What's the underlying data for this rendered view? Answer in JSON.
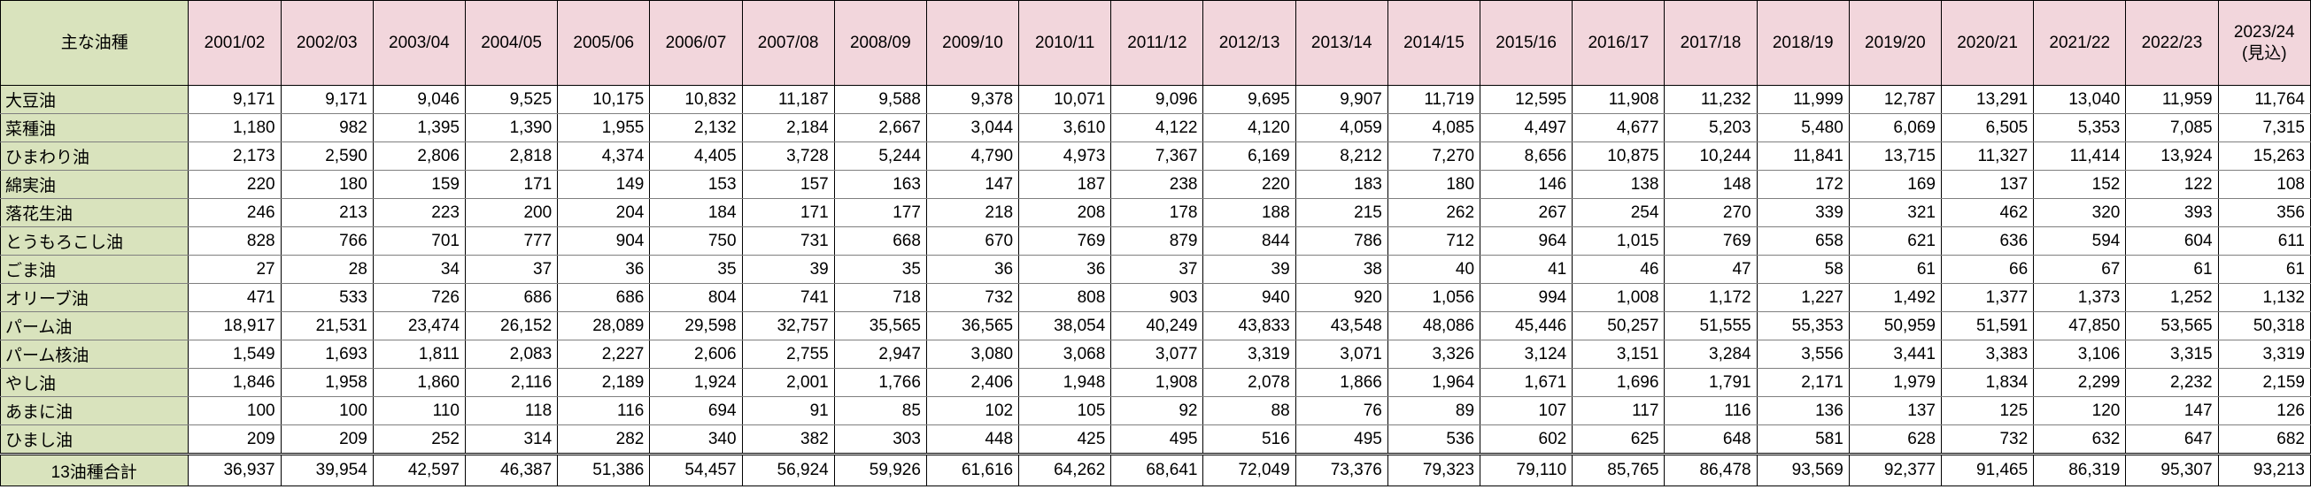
{
  "header": {
    "corner_label": "主な油種",
    "years": [
      "2001/02",
      "2002/03",
      "2003/04",
      "2004/05",
      "2005/06",
      "2006/07",
      "2007/08",
      "2008/09",
      "2009/10",
      "2010/11",
      "2011/12",
      "2012/13",
      "2013/14",
      "2014/15",
      "2015/16",
      "2016/17",
      "2017/18",
      "2018/19",
      "2019/20",
      "2020/21",
      "2021/22",
      "2022/23"
    ],
    "last_year": "2023/24",
    "last_year_note": "(見込)"
  },
  "rows": [
    {
      "name": "大豆油",
      "values": [
        "9,171",
        "9,171",
        "9,046",
        "9,525",
        "10,175",
        "10,832",
        "11,187",
        "9,588",
        "9,378",
        "10,071",
        "9,096",
        "9,695",
        "9,907",
        "11,719",
        "12,595",
        "11,908",
        "11,232",
        "11,999",
        "12,787",
        "13,291",
        "13,040",
        "11,959",
        "11,764"
      ]
    },
    {
      "name": "菜種油",
      "values": [
        "1,180",
        "982",
        "1,395",
        "1,390",
        "1,955",
        "2,132",
        "2,184",
        "2,667",
        "3,044",
        "3,610",
        "4,122",
        "4,120",
        "4,059",
        "4,085",
        "4,497",
        "4,677",
        "5,203",
        "5,480",
        "6,069",
        "6,505",
        "5,353",
        "7,085",
        "7,315"
      ]
    },
    {
      "name": "ひまわり油",
      "values": [
        "2,173",
        "2,590",
        "2,806",
        "2,818",
        "4,374",
        "4,405",
        "3,728",
        "5,244",
        "4,790",
        "4,973",
        "7,367",
        "6,169",
        "8,212",
        "7,270",
        "8,656",
        "10,875",
        "10,244",
        "11,841",
        "13,715",
        "11,327",
        "11,414",
        "13,924",
        "15,263"
      ]
    },
    {
      "name": "綿実油",
      "values": [
        "220",
        "180",
        "159",
        "171",
        "149",
        "153",
        "157",
        "163",
        "147",
        "187",
        "238",
        "220",
        "183",
        "180",
        "146",
        "138",
        "148",
        "172",
        "169",
        "137",
        "152",
        "122",
        "108"
      ]
    },
    {
      "name": "落花生油",
      "values": [
        "246",
        "213",
        "223",
        "200",
        "204",
        "184",
        "171",
        "177",
        "218",
        "208",
        "178",
        "188",
        "215",
        "262",
        "267",
        "254",
        "270",
        "339",
        "321",
        "462",
        "320",
        "393",
        "356"
      ]
    },
    {
      "name": "とうもろこし油",
      "values": [
        "828",
        "766",
        "701",
        "777",
        "904",
        "750",
        "731",
        "668",
        "670",
        "769",
        "879",
        "844",
        "786",
        "712",
        "964",
        "1,015",
        "769",
        "658",
        "621",
        "636",
        "594",
        "604",
        "611"
      ]
    },
    {
      "name": "ごま油",
      "values": [
        "27",
        "28",
        "34",
        "37",
        "36",
        "35",
        "39",
        "35",
        "36",
        "36",
        "37",
        "39",
        "38",
        "40",
        "41",
        "46",
        "47",
        "58",
        "61",
        "66",
        "67",
        "61",
        "61"
      ]
    },
    {
      "name": "オリーブ油",
      "values": [
        "471",
        "533",
        "726",
        "686",
        "686",
        "804",
        "741",
        "718",
        "732",
        "808",
        "903",
        "940",
        "920",
        "1,056",
        "994",
        "1,008",
        "1,172",
        "1,227",
        "1,492",
        "1,377",
        "1,373",
        "1,252",
        "1,132"
      ]
    },
    {
      "name": "パーム油",
      "values": [
        "18,917",
        "21,531",
        "23,474",
        "26,152",
        "28,089",
        "29,598",
        "32,757",
        "35,565",
        "36,565",
        "38,054",
        "40,249",
        "43,833",
        "43,548",
        "48,086",
        "45,446",
        "50,257",
        "51,555",
        "55,353",
        "50,959",
        "51,591",
        "47,850",
        "53,565",
        "50,318"
      ]
    },
    {
      "name": "パーム核油",
      "values": [
        "1,549",
        "1,693",
        "1,811",
        "2,083",
        "2,227",
        "2,606",
        "2,755",
        "2,947",
        "3,080",
        "3,068",
        "3,077",
        "3,319",
        "3,071",
        "3,326",
        "3,124",
        "3,151",
        "3,284",
        "3,556",
        "3,441",
        "3,383",
        "3,106",
        "3,315",
        "3,319"
      ]
    },
    {
      "name": "やし油",
      "values": [
        "1,846",
        "1,958",
        "1,860",
        "2,116",
        "2,189",
        "1,924",
        "2,001",
        "1,766",
        "2,406",
        "1,948",
        "1,908",
        "2,078",
        "1,866",
        "1,964",
        "1,671",
        "1,696",
        "1,791",
        "2,171",
        "1,979",
        "1,834",
        "2,299",
        "2,232",
        "2,159"
      ]
    },
    {
      "name": "あまに油",
      "values": [
        "100",
        "100",
        "110",
        "118",
        "116",
        "694",
        "91",
        "85",
        "102",
        "105",
        "92",
        "88",
        "76",
        "89",
        "107",
        "117",
        "116",
        "136",
        "137",
        "125",
        "120",
        "147",
        "126"
      ]
    },
    {
      "name": "ひまし油",
      "values": [
        "209",
        "209",
        "252",
        "314",
        "282",
        "340",
        "382",
        "303",
        "448",
        "425",
        "495",
        "516",
        "495",
        "536",
        "602",
        "625",
        "648",
        "581",
        "628",
        "732",
        "632",
        "647",
        "682"
      ]
    }
  ],
  "total": {
    "name": "13油種合計",
    "values": [
      "36,937",
      "39,954",
      "42,597",
      "46,387",
      "51,386",
      "54,457",
      "56,924",
      "59,926",
      "61,616",
      "64,262",
      "68,641",
      "72,049",
      "73,376",
      "79,323",
      "79,110",
      "85,765",
      "86,478",
      "93,569",
      "92,377",
      "91,465",
      "86,319",
      "95,307",
      "93,213"
    ]
  }
}
